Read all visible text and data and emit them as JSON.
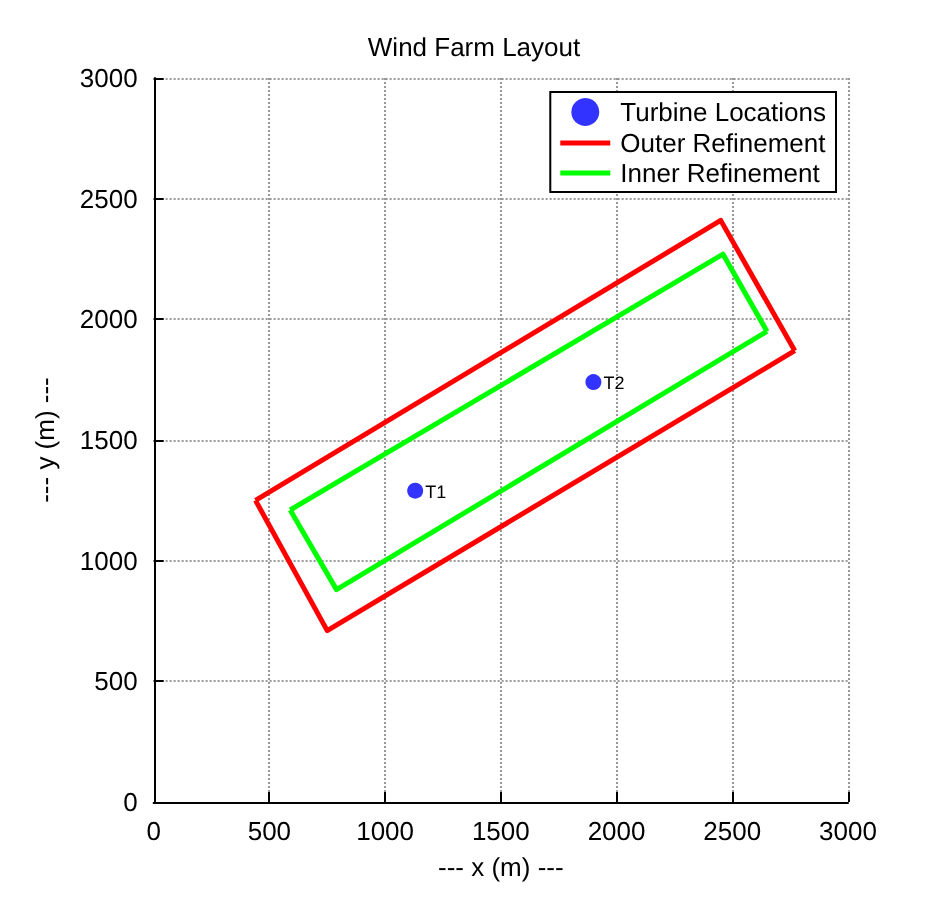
{
  "chart_data": {
    "type": "line",
    "title": "Wind Farm Layout",
    "xlabel": "--- x (m) ---",
    "ylabel": "--- y (m) ---",
    "xlim": [
      0,
      3000
    ],
    "ylim": [
      0,
      3000
    ],
    "xticks": [
      0,
      500,
      1000,
      1500,
      2000,
      2500,
      3000
    ],
    "yticks": [
      0,
      500,
      1000,
      1500,
      2000,
      2500,
      3000
    ],
    "grid": true,
    "legend": "top right",
    "line_style": "solid",
    "series": [
      {
        "name": "Turbine Locations",
        "type": "scatter",
        "marker": "circle",
        "color": "#0000ff",
        "x": [
          1130,
          1900
        ],
        "values": [
          1290,
          1740
        ]
      },
      {
        "name": "Outer Refinement",
        "color": "#ff0000",
        "x": [
          440,
          750,
          2770
        ],
        "values": [
          1250,
          710,
          1870
        ]
      },
      {
        "color": "#ff0000",
        "x": [
          440,
          2450,
          2770
        ],
        "values": [
          1250,
          2410,
          1870
        ]
      },
      {
        "name": "Inner Refinement",
        "color": "#00ff00",
        "x": [
          590,
          790,
          2650
        ],
        "values": [
          1210,
          880,
          1950
        ]
      },
      {
        "color": "#00ff00",
        "x": [
          590,
          2460,
          2650
        ],
        "values": [
          1210,
          2270,
          1950
        ]
      }
    ],
    "annotations": [
      {
        "text": "T1",
        "x": 1130,
        "y": 1290
      },
      {
        "text": "T2",
        "x": 1900,
        "y": 1740
      }
    ]
  }
}
